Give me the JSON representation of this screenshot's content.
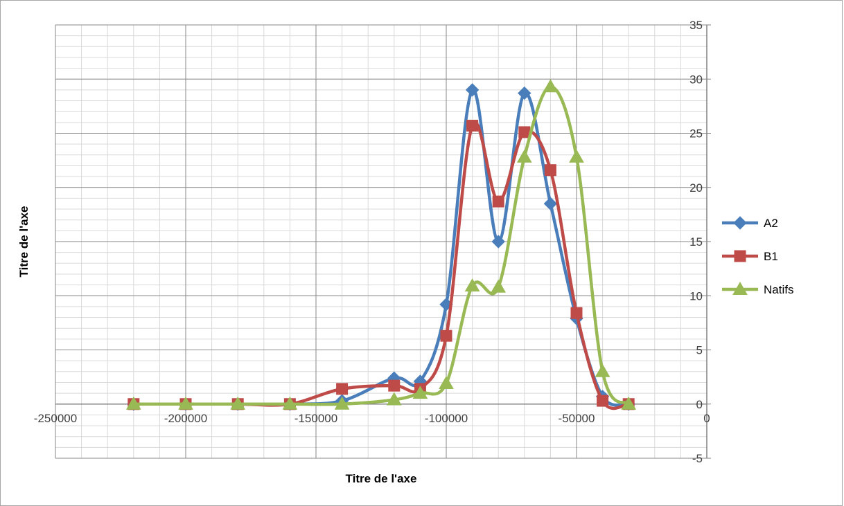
{
  "chart_data": {
    "type": "scatter",
    "smoothed": true,
    "title": "",
    "xlabel": "Titre de l'axe",
    "ylabel": "Titre de l'axe",
    "xlim": [
      -250000,
      0
    ],
    "ylim": [
      -5,
      35
    ],
    "x_ticks": [
      -250000,
      -200000,
      -150000,
      -100000,
      -50000,
      0
    ],
    "x_tick_labels": [
      "-250000",
      "-200000",
      "-150000",
      "-100000",
      "-50000",
      "0"
    ],
    "y_ticks": [
      -5,
      0,
      5,
      10,
      15,
      20,
      25,
      30,
      35
    ],
    "y_tick_labels": [
      "-5",
      "0",
      "5",
      "10",
      "15",
      "20",
      "25",
      "30",
      "35"
    ],
    "y_axis_position": "right",
    "grid": true,
    "minor_grid": true,
    "legend_position": "right",
    "series": [
      {
        "name": "A2",
        "color": "#4a7ebb",
        "marker": "diamond",
        "x": [
          -220000,
          -200000,
          -180000,
          -160000,
          -140000,
          -120000,
          -110000,
          -100000,
          -90000,
          -80000,
          -70000,
          -60000,
          -50000,
          -40000,
          -30000
        ],
        "y": [
          0,
          0,
          0,
          0,
          0.3,
          2.4,
          2.1,
          9.2,
          29,
          15,
          28.7,
          18.5,
          7.9,
          0.7,
          0
        ]
      },
      {
        "name": "B1",
        "color": "#be4b48",
        "marker": "square",
        "x": [
          -220000,
          -200000,
          -180000,
          -160000,
          -140000,
          -120000,
          -110000,
          -100000,
          -90000,
          -80000,
          -70000,
          -60000,
          -50000,
          -40000,
          -30000
        ],
        "y": [
          0,
          0,
          0,
          0,
          1.4,
          1.7,
          1.4,
          6.3,
          25.7,
          18.7,
          25.1,
          21.6,
          8.4,
          0.3,
          0
        ]
      },
      {
        "name": "Natifs",
        "color": "#98b954",
        "marker": "triangle",
        "x": [
          -220000,
          -200000,
          -180000,
          -160000,
          -140000,
          -120000,
          -110000,
          -100000,
          -90000,
          -80000,
          -70000,
          -60000,
          -50000,
          -40000,
          -30000
        ],
        "y": [
          0,
          0,
          0,
          0,
          0,
          0.4,
          1,
          1.9,
          10.9,
          10.8,
          22.8,
          29.3,
          22.8,
          3,
          0
        ]
      }
    ]
  }
}
